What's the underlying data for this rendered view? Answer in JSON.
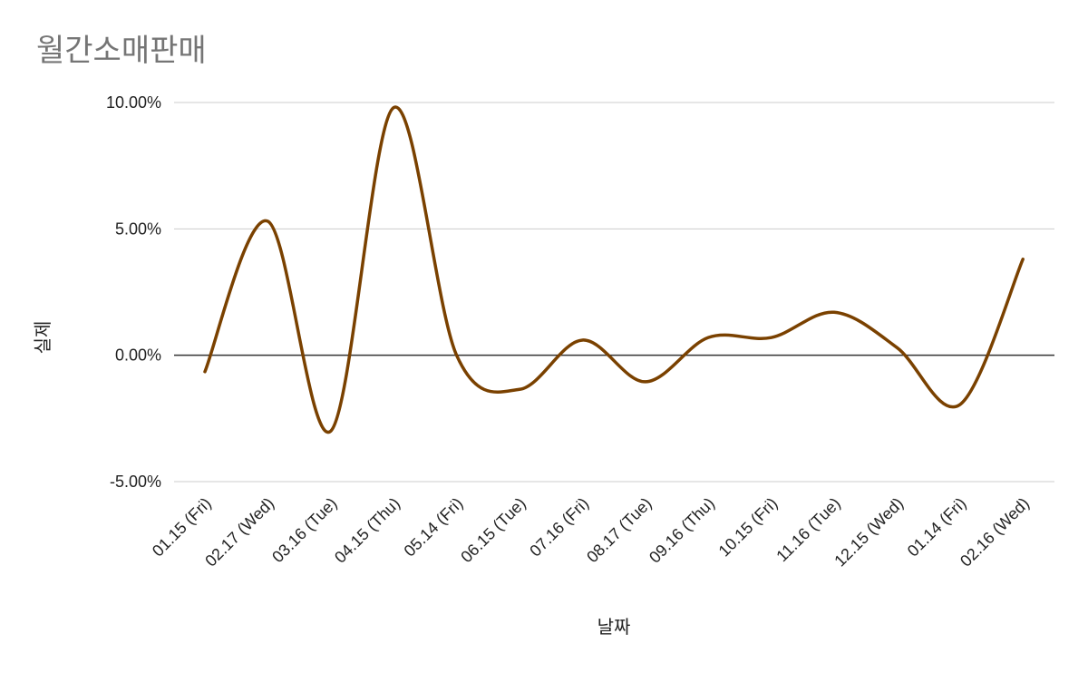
{
  "chart_data": {
    "type": "line",
    "title": "월간소매판매",
    "xlabel": "날짜",
    "ylabel": "실제",
    "categories": [
      "01.15 (Fri)",
      "02.17 (Wed)",
      "03.16 (Tue)",
      "04.15 (Thu)",
      "05.14 (Fri)",
      "06.15 (Tue)",
      "07.16 (Fri)",
      "08.17 (Tue)",
      "09.16 (Thu)",
      "10.15 (Fri)",
      "11.16 (Tue)",
      "12.15 (Wed)",
      "01.14 (Fri)",
      "02.16 (Wed)"
    ],
    "y_ticks": [
      "10.00%",
      "5.00%",
      "0.00%",
      "-5.00%"
    ],
    "ylim": [
      -0.05,
      0.1
    ],
    "grid": true,
    "legend": "none",
    "series": [
      {
        "color": "#7a4100",
        "smooth": true,
        "values": [
          -0.0065,
          0.053,
          -0.03,
          0.098,
          0.0,
          -0.0135,
          0.006,
          -0.0105,
          0.007,
          0.007,
          0.017,
          0.003,
          -0.0195,
          0.038
        ]
      }
    ]
  }
}
